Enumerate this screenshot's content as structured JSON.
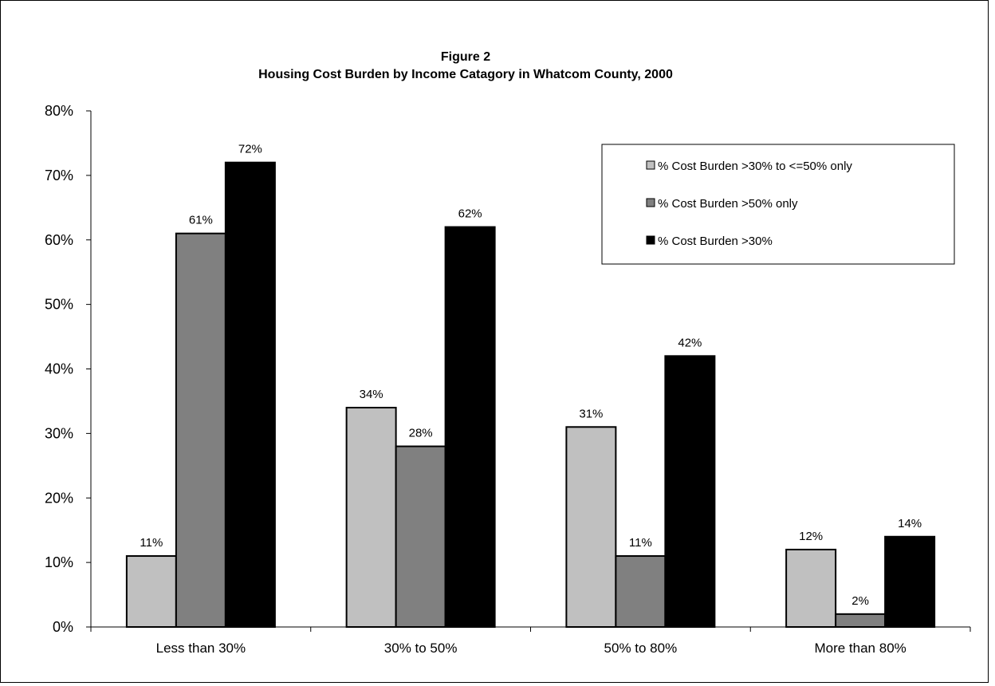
{
  "chart_data": {
    "type": "bar",
    "title": "Figure 2",
    "subtitle": "Housing Cost Burden by Income Catagory in Whatcom County, 2000",
    "xlabel": "",
    "ylabel": "",
    "categories": [
      "Less than 30%",
      "30% to 50%",
      "50% to 80%",
      "More than 80%"
    ],
    "series": [
      {
        "name": "% Cost Burden >30% to <=50% only",
        "values": [
          0.11,
          0.34,
          0.31,
          0.12
        ],
        "labels": [
          "11%",
          "34%",
          "31%",
          "12%"
        ],
        "color": "#c0c0c0"
      },
      {
        "name": "% Cost Burden >50% only",
        "values": [
          0.61,
          0.28,
          0.11,
          0.02
        ],
        "labels": [
          "61%",
          "28%",
          "11%",
          "2%"
        ],
        "color": "#808080"
      },
      {
        "name": "% Cost Burden >30%",
        "values": [
          0.72,
          0.62,
          0.42,
          0.14
        ],
        "labels": [
          "72%",
          "62%",
          "42%",
          "14%"
        ],
        "color": "#000000"
      }
    ],
    "ylim": [
      0,
      0.8
    ],
    "yticks": [
      0,
      0.1,
      0.2,
      0.3,
      0.4,
      0.5,
      0.6,
      0.7,
      0.8
    ],
    "ytick_labels": [
      "0%",
      "10%",
      "20%",
      "30%",
      "40%",
      "50%",
      "60%",
      "70%",
      "80%"
    ],
    "grid": false,
    "legend_position": "top-right"
  }
}
